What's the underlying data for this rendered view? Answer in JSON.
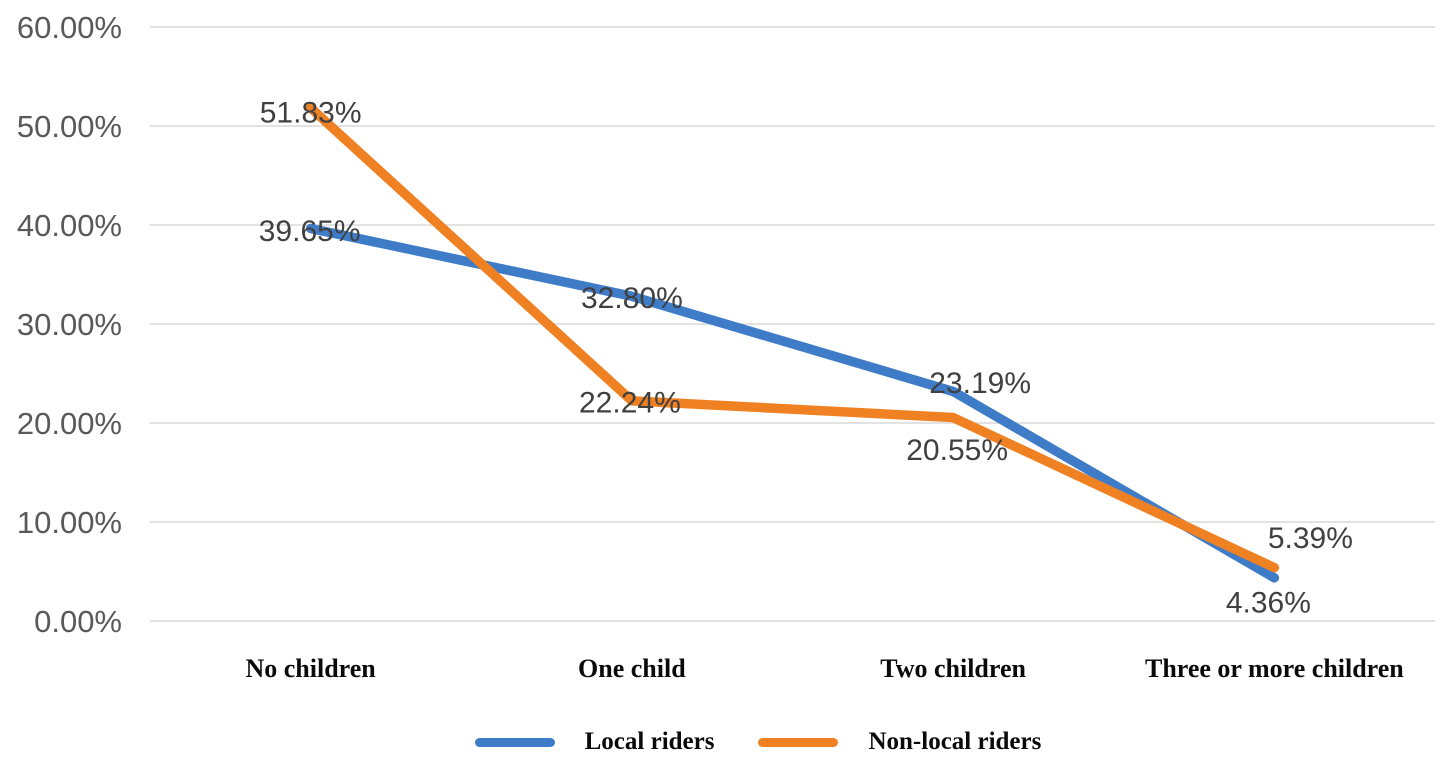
{
  "chart_data": {
    "type": "line",
    "categories": [
      "No children",
      "One child",
      "Two children",
      "Three or more children"
    ],
    "series": [
      {
        "name": "Local riders",
        "color": "#3F7CC8",
        "values": [
          39.65,
          32.8,
          23.19,
          4.36
        ],
        "data_labels": [
          "39.65%",
          "32.80%",
          "23.19%",
          "4.36%"
        ]
      },
      {
        "name": "Non-local riders",
        "color": "#F08123",
        "values": [
          51.83,
          22.24,
          20.55,
          5.39
        ],
        "data_labels": [
          "51.83%",
          "22.24%",
          "20.55%",
          "5.39%"
        ]
      }
    ],
    "y_axis": {
      "min": 0,
      "max": 60,
      "step": 10,
      "tick_labels": [
        "0.00%",
        "10.00%",
        "20.00%",
        "30.00%",
        "40.00%",
        "50.00%",
        "60.00%"
      ]
    },
    "grid": true,
    "legend_position": "bottom",
    "label_offsets": [
      [
        [
          -1,
          2
        ],
        [
          0,
          1
        ],
        [
          27,
          -9
        ],
        [
          -6,
          24
        ]
      ],
      [
        [
          0,
          4
        ],
        [
          -2,
          1
        ],
        [
          4,
          32
        ],
        [
          36,
          -30
        ]
      ]
    ],
    "colors": {
      "gridline": "#D9D9D9",
      "axis_text": "#595959",
      "data_label_text": "#404040",
      "series_blue": "#3F7CC8",
      "series_orange": "#F08123"
    }
  }
}
